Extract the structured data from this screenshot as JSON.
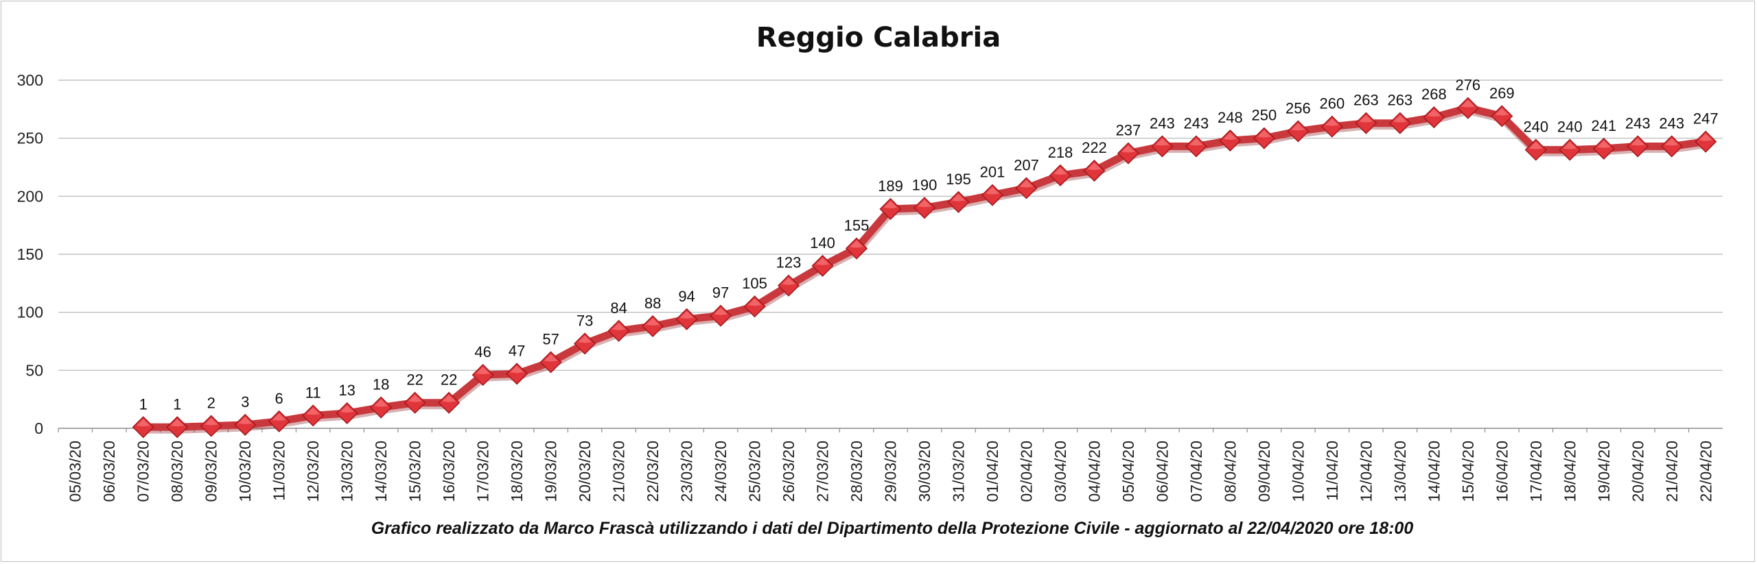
{
  "chart_data": {
    "type": "line",
    "title": "Reggio Calabria",
    "footer": "Grafico  realizzato da Marco Frascà  utilizzando i dati del Dipartimento  della Protezione Civile - aggiornato al 22/04/2020 ore 18:00",
    "xlabel": "",
    "ylabel": "",
    "ylim": [
      0,
      300
    ],
    "yticks": [
      0,
      50,
      100,
      150,
      200,
      250,
      300
    ],
    "grid": true,
    "legend": "none",
    "line_color": "#c8383c",
    "marker_color": "#e0353a",
    "categories": [
      "05/03/20",
      "06/03/20",
      "07/03/20",
      "08/03/20",
      "09/03/20",
      "10/03/20",
      "11/03/20",
      "12/03/20",
      "13/03/20",
      "14/03/20",
      "15/03/20",
      "16/03/20",
      "17/03/20",
      "18/03/20",
      "19/03/20",
      "20/03/20",
      "21/03/20",
      "22/03/20",
      "23/03/20",
      "24/03/20",
      "25/03/20",
      "26/03/20",
      "27/03/20",
      "28/03/20",
      "29/03/20",
      "30/03/20",
      "31/03/20",
      "01/04/20",
      "02/04/20",
      "03/04/20",
      "04/04/20",
      "05/04/20",
      "06/04/20",
      "07/04/20",
      "08/04/20",
      "09/04/20",
      "10/04/20",
      "11/04/20",
      "12/04/20",
      "13/04/20",
      "14/04/20",
      "15/04/20",
      "16/04/20",
      "17/04/20",
      "18/04/20",
      "19/04/20",
      "20/04/20",
      "21/04/20",
      "22/04/20"
    ],
    "values": [
      null,
      null,
      1,
      1,
      2,
      3,
      6,
      11,
      13,
      18,
      22,
      22,
      46,
      47,
      57,
      73,
      84,
      88,
      94,
      97,
      105,
      123,
      140,
      155,
      189,
      190,
      195,
      201,
      207,
      218,
      222,
      237,
      243,
      243,
      248,
      250,
      256,
      260,
      263,
      263,
      268,
      276,
      269,
      240,
      240,
      241,
      243,
      243,
      247
    ]
  }
}
